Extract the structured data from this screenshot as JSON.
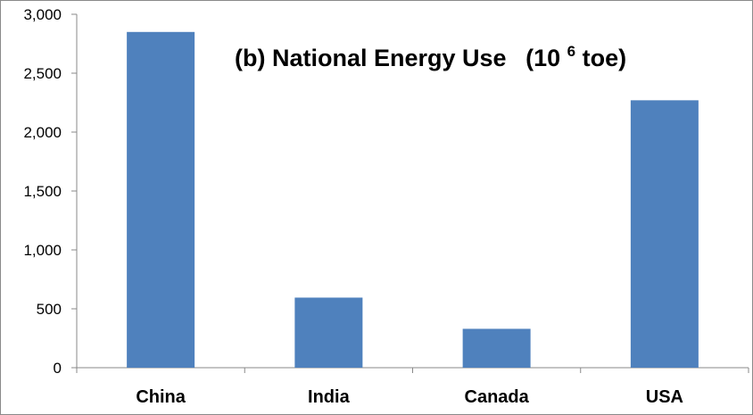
{
  "chart_data": {
    "type": "bar",
    "title": "(b) National Energy Use",
    "title_unit_prefix": "(10",
    "title_unit_exponent": "6",
    "title_unit_suffix": " toe)",
    "categories": [
      "China",
      "India",
      "Canada",
      "USA"
    ],
    "values": [
      2850,
      595,
      330,
      2270
    ],
    "ylim": [
      0,
      3000
    ],
    "yticks": [
      0,
      500,
      1000,
      1500,
      2000,
      2500,
      3000
    ],
    "ytick_labels": [
      "0",
      "500",
      "1,000",
      "1,500",
      "2,000",
      "2,500",
      "3,000"
    ],
    "xlabel": "",
    "ylabel": "",
    "grid": false,
    "bar_color": "#4F81BD"
  }
}
